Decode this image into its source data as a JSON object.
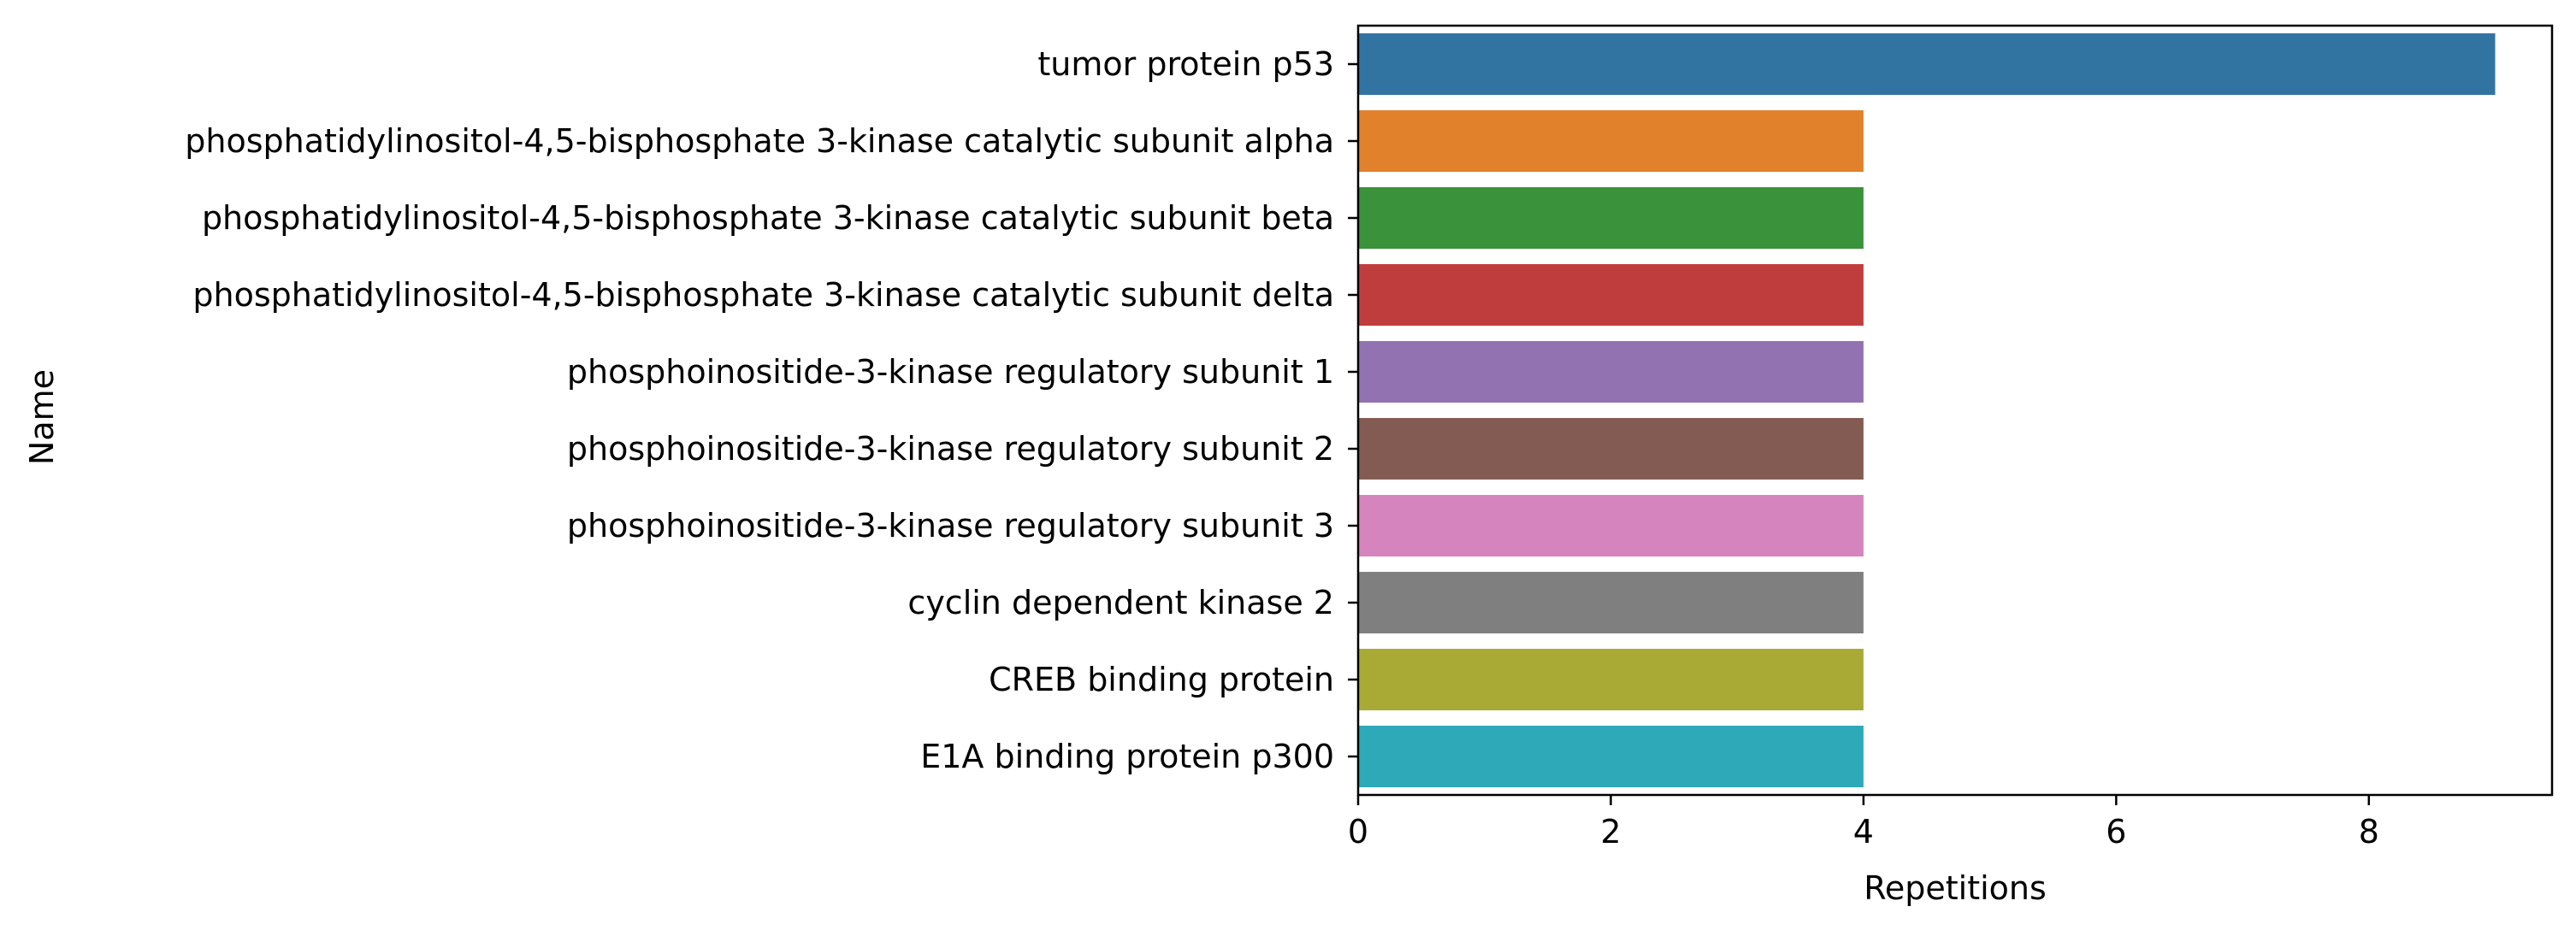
{
  "chart_data": {
    "type": "bar",
    "orientation": "horizontal",
    "categories": [
      "tumor protein p53",
      "phosphatidylinositol-4,5-bisphosphate 3-kinase catalytic subunit alpha",
      "phosphatidylinositol-4,5-bisphosphate 3-kinase catalytic subunit beta",
      "phosphatidylinositol-4,5-bisphosphate 3-kinase catalytic subunit delta",
      "phosphoinositide-3-kinase regulatory subunit 1",
      "phosphoinositide-3-kinase regulatory subunit 2",
      "phosphoinositide-3-kinase regulatory subunit 3",
      "cyclin dependent kinase 2",
      "CREB binding protein",
      "E1A binding protein p300"
    ],
    "values": [
      9,
      4,
      4,
      4,
      4,
      4,
      4,
      4,
      4,
      4
    ],
    "colors": [
      "#3274a1",
      "#e1812c",
      "#3a923a",
      "#c03d3e",
      "#9372b2",
      "#845b53",
      "#d684bd",
      "#7f7f7f",
      "#a9aa35",
      "#2ea9b8"
    ],
    "xlabel": "Repetitions",
    "ylabel": "Name",
    "xlim": [
      0,
      9.45
    ],
    "xticks": [
      0,
      2,
      4,
      6,
      8
    ],
    "grid": false
  }
}
